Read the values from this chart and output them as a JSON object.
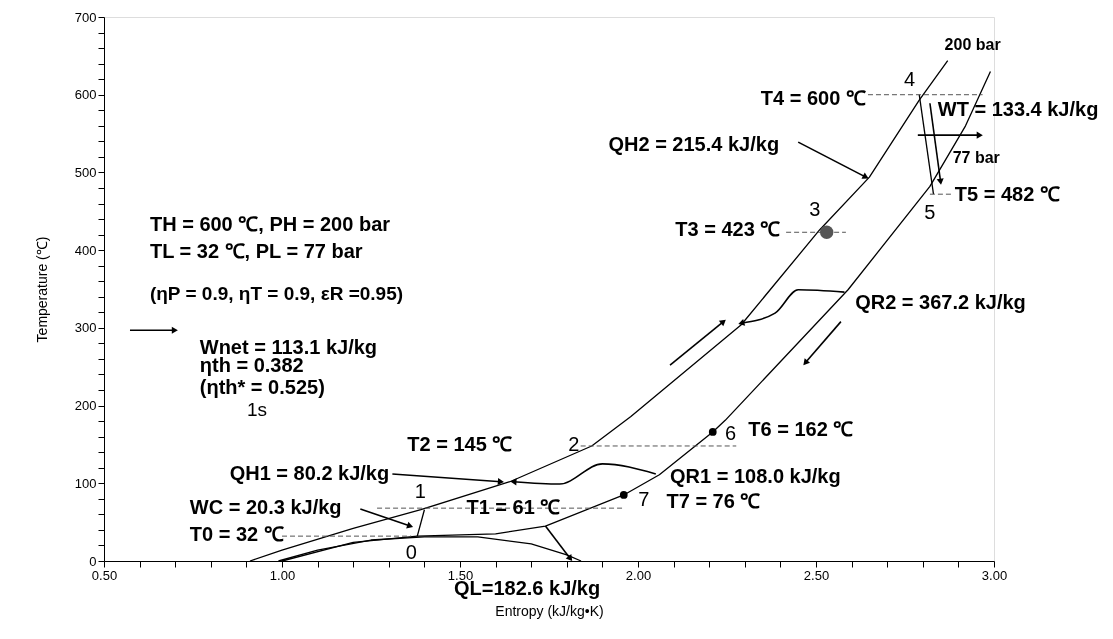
{
  "chart_data": {
    "type": "line",
    "xlabel": "Entropy (kJ/kg•K)",
    "ylabel": "Temperature (℃)",
    "xlim": [
      0.5,
      3.0
    ],
    "ylim": [
      0,
      700
    ],
    "xticks": [
      {
        "value": 0.5,
        "label": "0.50"
      },
      {
        "value": 0.6,
        "label": null
      },
      {
        "value": 0.7,
        "label": null
      },
      {
        "value": 0.8,
        "label": null
      },
      {
        "value": 0.9,
        "label": null
      },
      {
        "value": 1.0,
        "label": "1.00"
      },
      {
        "value": 1.1,
        "label": null
      },
      {
        "value": 1.2,
        "label": null
      },
      {
        "value": 1.3,
        "label": null
      },
      {
        "value": 1.4,
        "label": null
      },
      {
        "value": 1.5,
        "label": "1.50"
      },
      {
        "value": 1.6,
        "label": null
      },
      {
        "value": 1.7,
        "label": null
      },
      {
        "value": 1.8,
        "label": null
      },
      {
        "value": 1.9,
        "label": null
      },
      {
        "value": 2.0,
        "label": "2.00"
      },
      {
        "value": 2.1,
        "label": null
      },
      {
        "value": 2.2,
        "label": null
      },
      {
        "value": 2.3,
        "label": null
      },
      {
        "value": 2.4,
        "label": null
      },
      {
        "value": 2.5,
        "label": "2.50"
      },
      {
        "value": 2.6,
        "label": null
      },
      {
        "value": 2.7,
        "label": null
      },
      {
        "value": 2.8,
        "label": null
      },
      {
        "value": 2.9,
        "label": null
      },
      {
        "value": 3.0,
        "label": "3.00"
      }
    ],
    "yticks": [
      0,
      {
        "value": 20,
        "label": null
      },
      {
        "value": 40,
        "label": null
      },
      {
        "value": 60,
        "label": null
      },
      {
        "value": 80,
        "label": null
      },
      100,
      {
        "value": 120,
        "label": null
      },
      {
        "value": 140,
        "label": null
      },
      {
        "value": 160,
        "label": null
      },
      {
        "value": 180,
        "label": null
      },
      200,
      {
        "value": 220,
        "label": null
      },
      {
        "value": 240,
        "label": null
      },
      {
        "value": 260,
        "label": null
      },
      {
        "value": 280,
        "label": null
      },
      300,
      {
        "value": 320,
        "label": null
      },
      {
        "value": 340,
        "label": null
      },
      {
        "value": 360,
        "label": null
      },
      {
        "value": 380,
        "label": null
      },
      400,
      {
        "value": 420,
        "label": null
      },
      {
        "value": 440,
        "label": null
      },
      {
        "value": 460,
        "label": null
      },
      {
        "value": 480,
        "label": null
      },
      500,
      {
        "value": 520,
        "label": null
      },
      {
        "value": 540,
        "label": null
      },
      {
        "value": 560,
        "label": null
      },
      {
        "value": 580,
        "label": null
      },
      600,
      {
        "value": 620,
        "label": null
      },
      {
        "value": 640,
        "label": null
      },
      {
        "value": 660,
        "label": null
      },
      {
        "value": 680,
        "label": null
      },
      700
    ],
    "grid": false,
    "series": [
      {
        "color": "#000000",
        "x": [
          0.91,
          1.0,
          1.2,
          1.39,
          1.64,
          1.87,
          1.98,
          2.29,
          2.51,
          2.65,
          2.79,
          2.87
        ],
        "values": [
          0,
          14,
          42,
          66,
          102,
          148,
          186,
          304,
          426,
          494,
          593,
          644
        ]
      },
      {
        "color": "#000000",
        "x": [
          1.0,
          1.2,
          1.38,
          1.6,
          1.74,
          1.96,
          2.06,
          2.21,
          2.245,
          2.59,
          2.82,
          2.92,
          2.99
        ],
        "values": [
          0,
          24,
          32,
          35,
          45,
          85,
          111,
          166,
          181,
          349,
          482,
          560,
          630
        ]
      },
      {
        "color": "#000000",
        "x": [
          0.99,
          1.1,
          1.25,
          1.4,
          1.55,
          1.7,
          1.8,
          1.84
        ],
        "values": [
          0,
          14,
          27,
          31,
          31,
          22,
          8,
          0
        ]
      },
      {
        "color": "#000000",
        "x": [
          1.38,
          1.4
        ],
        "values": [
          32,
          66
        ]
      },
      {
        "color": "#000000",
        "x": [
          2.79,
          2.83
        ],
        "values": [
          600,
          472
        ]
      },
      {
        "color": "#555555",
        "line_style": "dashed",
        "x": [
          2.646,
          2.968
        ],
        "values": [
          600,
          600
        ]
      },
      {
        "color": "#555555",
        "line_style": "dashed",
        "x": [
          2.82,
          2.885
        ],
        "values": [
          472,
          472
        ]
      },
      {
        "color": "#555555",
        "line_style": "dashed",
        "x": [
          2.416,
          2.584
        ],
        "values": [
          423,
          423
        ]
      },
      {
        "color": "#555555",
        "line_style": "dashed",
        "x": [
          1.839,
          2.276
        ],
        "values": [
          148,
          148
        ]
      },
      {
        "color": "#555555",
        "line_style": "dashed",
        "x": [
          1.267,
          1.96
        ],
        "values": [
          68,
          68
        ]
      },
      {
        "color": "#555555",
        "line_style": "dashed",
        "x": [
          1.0,
          1.363
        ],
        "values": [
          32,
          32
        ]
      },
      {
        "type": "scatter",
        "color": "#555555",
        "marker": "circle",
        "x": [
          2.53
        ],
        "values": [
          423
        ]
      },
      {
        "type": "scatter",
        "color": "#000000",
        "marker": "circle",
        "x": [
          2.21,
          1.96
        ],
        "values": [
          166,
          85
        ]
      }
    ],
    "annotations": [
      "200 bar",
      "T4 = 600 ℃",
      "4",
      "WT = 133.4 kJ/kg",
      {
        "text": "QH2 = 215.4 kJ/kg",
        "x": 2.64,
        "y": 494
      },
      "77 bar",
      "T5 = 482 ℃",
      "5",
      "3",
      "T3 = 423 ℃",
      "TH = 600 ℃, PH = 200 bar",
      "TL =  32 ℃,  PL = 77 bar",
      "(ηP = 0.9, ηT = 0.9, εR =0.95)",
      {
        "text": "QR2 = 367.2 kJ/kg",
        "x": 2.29,
        "y": 306
      },
      "Wnet = 113.1 kJ/kg",
      "ηth = 0.382",
      "(ηth* = 0.525)",
      "1s",
      "T2 = 145 ℃",
      "2",
      "6",
      "T6 = 162 ℃",
      {
        "text": "QH1 = 80.2 kJ/kg",
        "x": 1.615,
        "y": 102
      },
      {
        "text": "QR1 = 108.0 kJ/kg",
        "x": 1.65,
        "y": 102
      },
      {
        "text": "1",
        "x": 1.4,
        "y": 66
      },
      {
        "text": "7",
        "x": 1.96,
        "y": 85
      },
      "T7 = 76 ℃",
      {
        "text": "WC = 20.3 kJ/kg",
        "x": 1.36,
        "y": 45
      },
      {
        "text": "T1 = 61 ℃",
        "x": 1.65,
        "y": 68
      },
      "T0 = 32 ℃",
      "0",
      {
        "text": "QL=182.6 kJ/kg",
        "x": 1.81,
        "y": 3
      }
    ]
  }
}
